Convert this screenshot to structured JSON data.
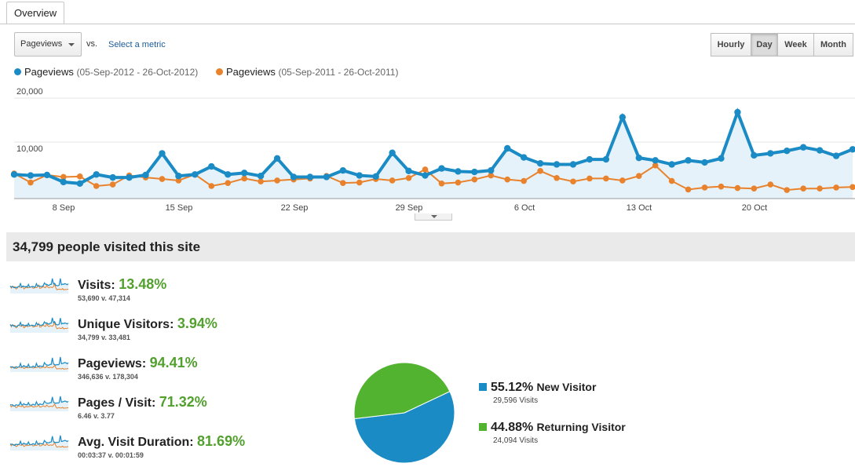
{
  "tabs": [
    {
      "label": "Overview"
    }
  ],
  "metric_selector": {
    "value": "Pageviews",
    "vs": "vs.",
    "link": "Select a metric"
  },
  "granularity": [
    {
      "label": "Hourly",
      "active": false
    },
    {
      "label": "Day",
      "active": true
    },
    {
      "label": "Week",
      "active": false
    },
    {
      "label": "Month",
      "active": false
    }
  ],
  "legend": [
    {
      "name": "Pageviews",
      "range": "(05-Sep-2012 - 26-Oct-2012)",
      "color": "#1a8bc4"
    },
    {
      "name": "Pageviews",
      "range": "(05-Sep-2011 - 26-Oct-2011)",
      "color": "#e8822d"
    }
  ],
  "chart_data": {
    "type": "area",
    "x_ticks": [
      "8 Sep",
      "15 Sep",
      "22 Sep",
      "29 Sep",
      "6 Oct",
      "13 Oct",
      "20 Oct"
    ],
    "y_ticks": [
      "20,000",
      "10,000"
    ],
    "ylim": [
      0,
      20000
    ],
    "grid": true,
    "series": [
      {
        "name": "Pageviews (05-Sep-2012 - 26-Oct-2012)",
        "color": "#1a8bc4",
        "values": [
          4800,
          4600,
          4700,
          3300,
          3000,
          4800,
          4200,
          4200,
          4700,
          9000,
          4500,
          4800,
          6400,
          4800,
          5100,
          4500,
          8000,
          4300,
          4300,
          4300,
          5600,
          4600,
          4400,
          9100,
          5500,
          4600,
          6000,
          5400,
          5300,
          5600,
          10000,
          8200,
          7000,
          6800,
          6800,
          7800,
          7800,
          16200,
          8100,
          7600,
          6800,
          7600,
          7200,
          8000,
          17200,
          8600,
          9000,
          9500,
          10200,
          9600,
          8500,
          9800
        ]
      },
      {
        "name": "Pageviews (05-Sep-2011 - 26-Oct-2011)",
        "color": "#e8822d",
        "values": [
          5000,
          3200,
          4700,
          4300,
          4400,
          2500,
          2800,
          4600,
          4200,
          3900,
          3600,
          4800,
          2500,
          3100,
          4000,
          3400,
          3600,
          3800,
          4000,
          4500,
          3100,
          3200,
          3900,
          3600,
          4100,
          5800,
          3000,
          3200,
          3800,
          4600,
          3800,
          3500,
          5500,
          4100,
          3400,
          4000,
          4000,
          3600,
          4500,
          6600,
          3500,
          1800,
          2200,
          2400,
          2100,
          2000,
          2800,
          1700,
          2000,
          2000,
          2200,
          2300
        ]
      }
    ]
  },
  "summary": {
    "title": "34,799 people visited this site"
  },
  "metrics": [
    {
      "label": "Visits:",
      "pct": "13.48%",
      "sub": "53,690 v. 47,314"
    },
    {
      "label": "Unique Visitors:",
      "pct": "3.94%",
      "sub": "34,799 v. 33,481"
    },
    {
      "label": "Pageviews:",
      "pct": "94.41%",
      "sub": "346,636 v. 178,304"
    },
    {
      "label": "Pages / Visit:",
      "pct": "71.32%",
      "sub": "6.46 v. 3.77"
    },
    {
      "label": "Avg. Visit Duration:",
      "pct": "81.69%",
      "sub": "00:03:37 v. 00:01:59"
    }
  ],
  "pie": {
    "slices": [
      {
        "label": "New Visitor",
        "pct": "55.12%",
        "value": 55.12,
        "sub": "29,596 Visits",
        "color": "#1a8bc4"
      },
      {
        "label": "Returning Visitor",
        "pct": "44.88%",
        "value": 44.88,
        "sub": "24,094 Visits",
        "color": "#52b331"
      }
    ]
  }
}
